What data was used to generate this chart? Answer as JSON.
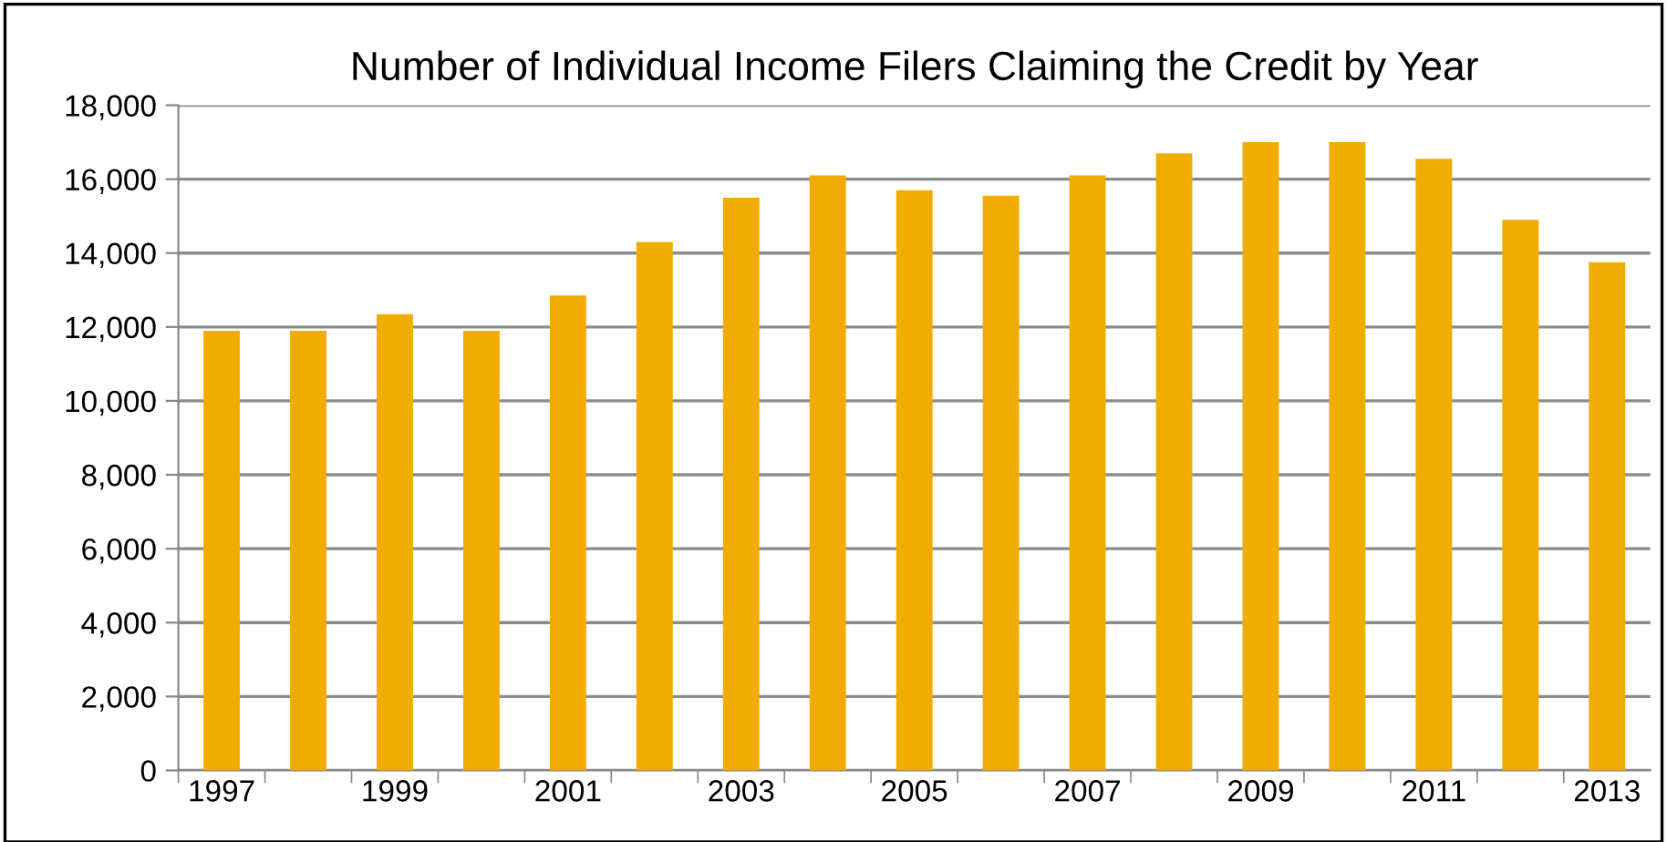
{
  "chart_data": {
    "type": "bar",
    "title": "Number of Individual Income Filers Claiming the Credit by Year",
    "categories": [
      "1997",
      null,
      "1999",
      null,
      "2001",
      null,
      "2003",
      null,
      "2005",
      null,
      "2007",
      null,
      "2009",
      null,
      "2011",
      null,
      "2013"
    ],
    "values": [
      11900,
      11900,
      12350,
      11900,
      12850,
      14300,
      15500,
      16100,
      15700,
      15550,
      16100,
      16700,
      17000,
      17000,
      16550,
      14900,
      13750
    ],
    "color": "#f0ad00",
    "ylim": [
      0,
      18000
    ],
    "yticks": [
      {
        "value": 0,
        "label": "0"
      },
      {
        "value": 2000,
        "label": "2,000"
      },
      {
        "value": 4000,
        "label": "4,000"
      },
      {
        "value": 6000,
        "label": "6,000"
      },
      {
        "value": 8000,
        "label": "8,000"
      },
      {
        "value": 10000,
        "label": "10,000"
      },
      {
        "value": 12000,
        "label": "12,000"
      },
      {
        "value": 14000,
        "label": "14,000"
      },
      {
        "value": 16000,
        "label": "16,000"
      },
      {
        "value": 18000,
        "label": "18,000"
      }
    ],
    "grid": "y"
  }
}
